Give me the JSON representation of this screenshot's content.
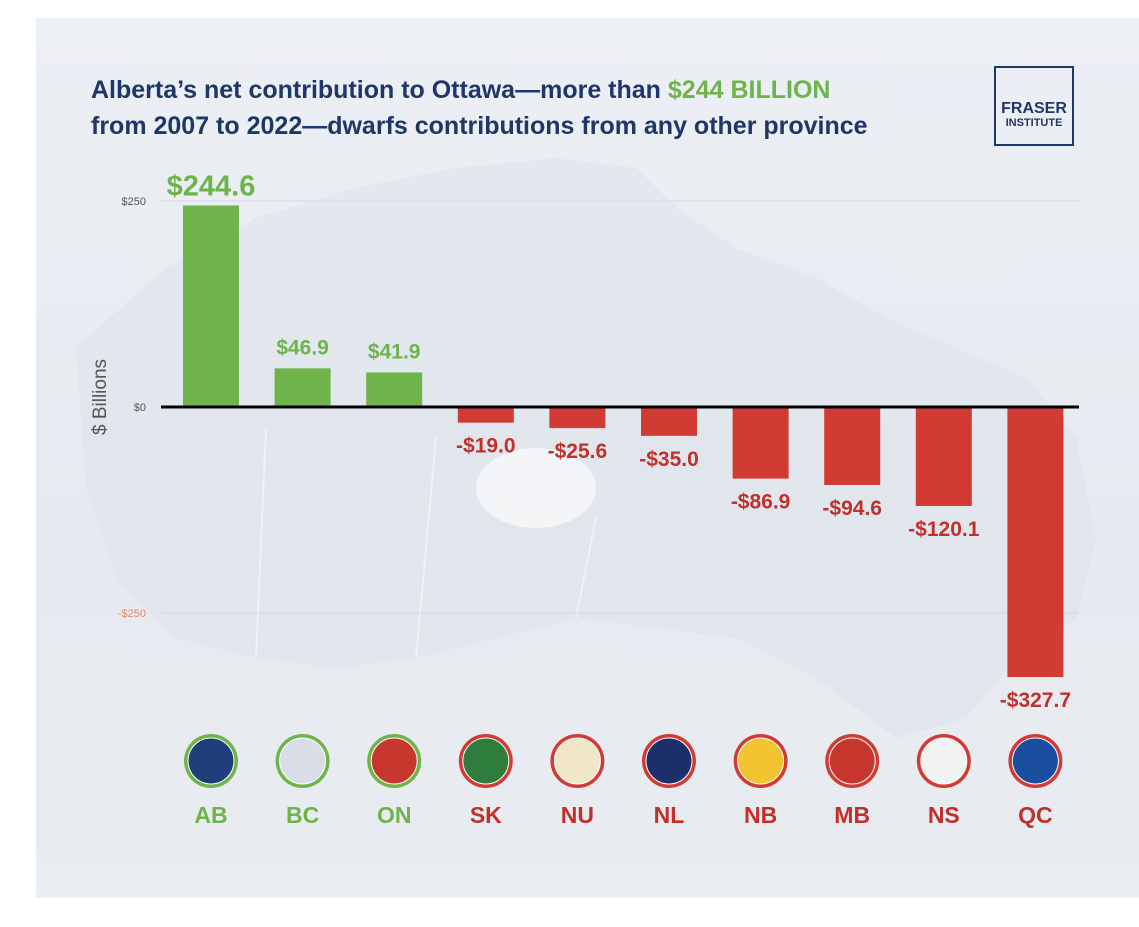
{
  "title": {
    "line1_prefix": "Alberta’s net contribution to Ottawa—more than ",
    "line1_highlight": "$244 BILLION",
    "line2": "from 2007 to 2022—dwarfs contributions from any other province"
  },
  "logo": {
    "line1": "FRASER",
    "line2": "INSTITUTE"
  },
  "colors": {
    "positive": "#6fb44b",
    "negative": "#d23a34",
    "title": "#1f3668",
    "axis_label": "#555555",
    "negative_tick": "#e08a6c",
    "positive_label": "#6fb44b",
    "negative_label": "#c1302b"
  },
  "chart_data": {
    "type": "bar",
    "title": "Alberta’s net contribution to Ottawa—more than $244 BILLION from 2007 to 2022—dwarfs contributions from any other province",
    "ylabel": "$ Billions",
    "xlabel": "",
    "ylim": [
      -327.7,
      250
    ],
    "yticks": [
      {
        "value": 250,
        "label": "$250"
      },
      {
        "value": 0,
        "label": "$0"
      },
      {
        "value": -250,
        "label": "-$250"
      }
    ],
    "categories": [
      "AB",
      "BC",
      "ON",
      "SK",
      "NU",
      "NL",
      "NB",
      "MB",
      "NS",
      "QC"
    ],
    "values": [
      244.6,
      46.9,
      41.9,
      -19.0,
      -25.6,
      -35.0,
      -86.9,
      -94.6,
      -120.1,
      -327.7
    ],
    "value_labels": [
      "$244.6",
      "$46.9",
      "$41.9",
      "-$19.0",
      "-$25.6",
      "-$35.0",
      "-$86.9",
      "-$94.6",
      "-$120.1",
      "-$327.7"
    ],
    "flag_icons": [
      "alberta-flag-icon",
      "british-columbia-flag-icon",
      "ontario-flag-icon",
      "saskatchewan-flag-icon",
      "nunavut-flag-icon",
      "newfoundland-flag-icon",
      "new-brunswick-flag-icon",
      "manitoba-flag-icon",
      "nova-scotia-flag-icon",
      "quebec-flag-icon"
    ]
  }
}
